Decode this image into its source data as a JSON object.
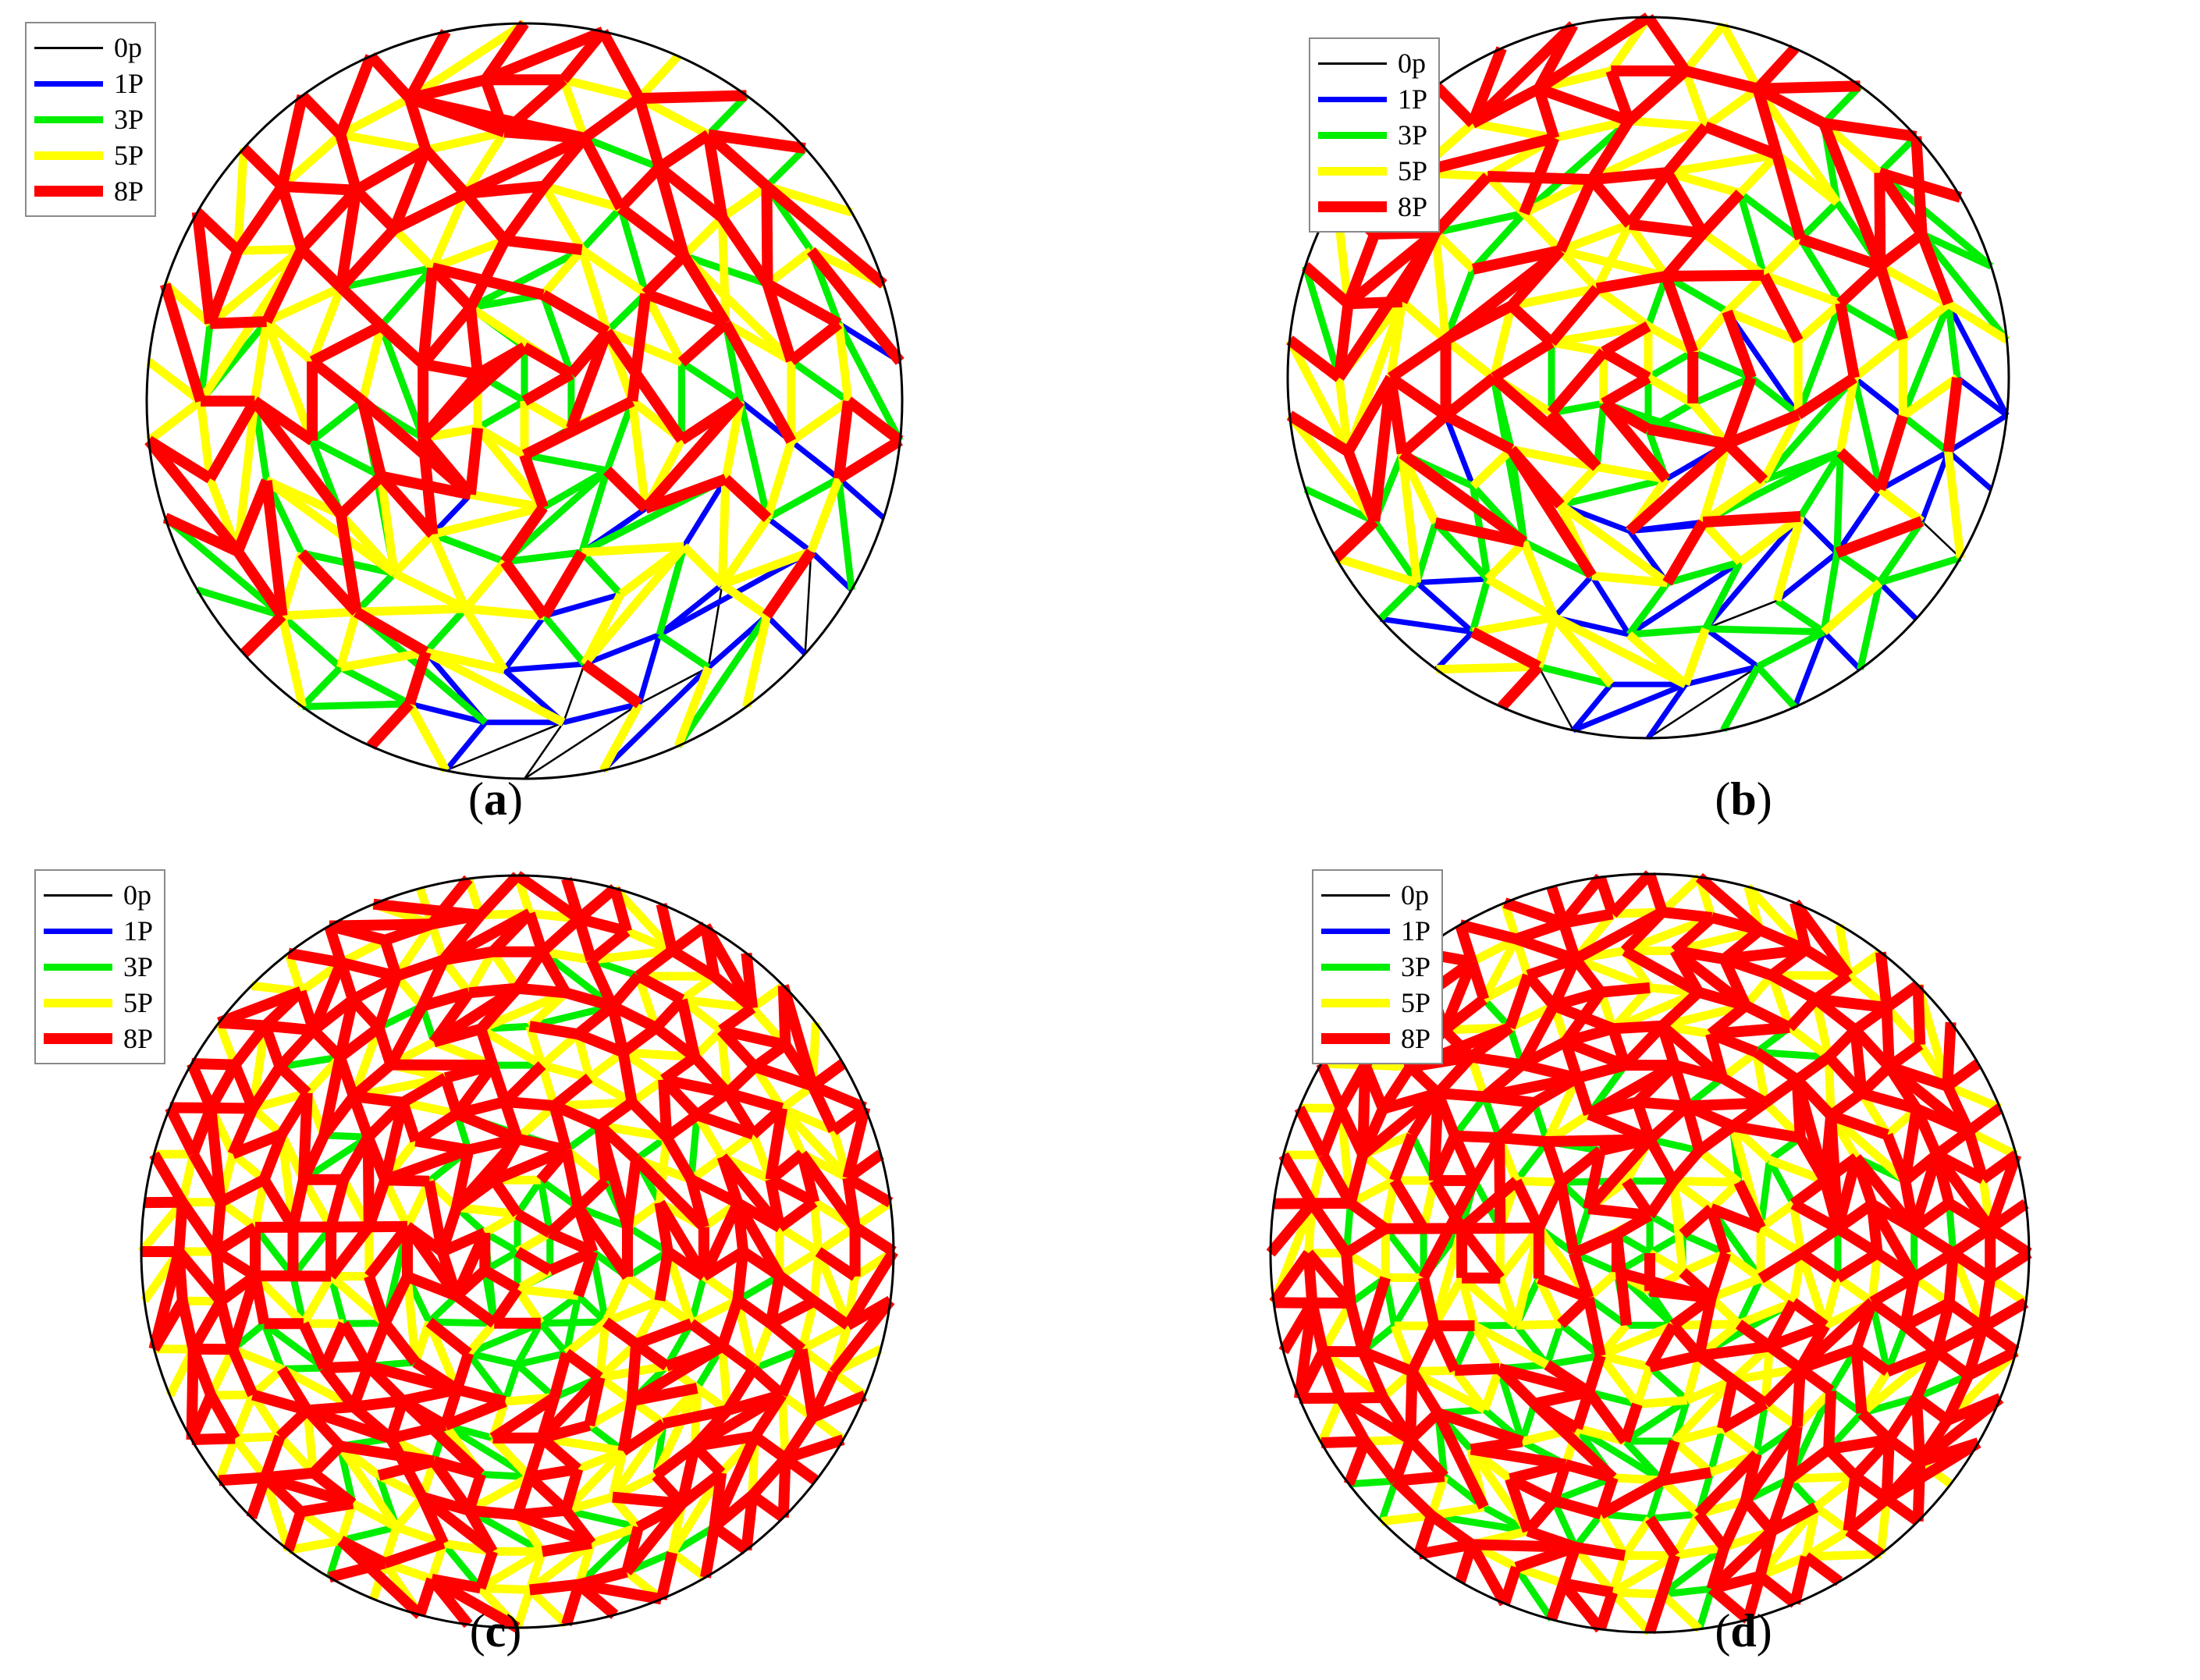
{
  "legend": [
    {
      "label": "0p",
      "color": "#000000"
    },
    {
      "label": "1P",
      "color": "#0000ff"
    },
    {
      "label": "3P",
      "color": "#00ee00"
    },
    {
      "label": "5P",
      "color": "#ffff00"
    },
    {
      "label": "8P",
      "color": "#ff0000"
    }
  ],
  "panels": [
    {
      "id": "a",
      "caption_open": "(",
      "caption_letter": "a",
      "caption_close": ")",
      "mesh": "radial-lamella",
      "rings": 7,
      "sectors": 30
    },
    {
      "id": "b",
      "caption_open": "(",
      "caption_letter": "b",
      "caption_close": ")",
      "mesh": "radial-lamella",
      "rings": 7,
      "sectors": 30
    },
    {
      "id": "c",
      "caption_open": "(",
      "caption_letter": "c",
      "caption_close": ")",
      "mesh": "radial-lamella",
      "rings": 10,
      "sectors": 48
    },
    {
      "id": "d",
      "caption_open": "(",
      "caption_letter": "d",
      "caption_close": ")",
      "mesh": "radial-lamella",
      "rings": 10,
      "sectors": 48
    }
  ]
}
